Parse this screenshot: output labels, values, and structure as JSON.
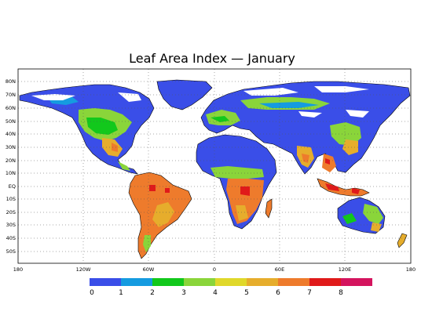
{
  "title": "Leaf Area Index — January",
  "lat_labels": [
    "80N",
    "70N",
    "60N",
    "50N",
    "40N",
    "30N",
    "20N",
    "10N",
    "EQ",
    "10S",
    "20S",
    "30S",
    "40S",
    "50S"
  ],
  "lon_labels": [
    "180",
    "120W",
    "60W",
    "0",
    "60E",
    "120E",
    "180"
  ],
  "legend": {
    "labels": [
      "0",
      "1",
      "2",
      "3",
      "4",
      "5",
      "6",
      "7",
      "8"
    ],
    "colors": [
      "#3a4ee8",
      "#159be0",
      "#12c81c",
      "#8ad53a",
      "#e0d82a",
      "#e6ad2c",
      "#ee7b2c",
      "#e01a1a",
      "#d4145e"
    ]
  },
  "colors": {
    "ocean": "#ffffff",
    "water_land": "#3a4ee8",
    "border": "#000000"
  }
}
